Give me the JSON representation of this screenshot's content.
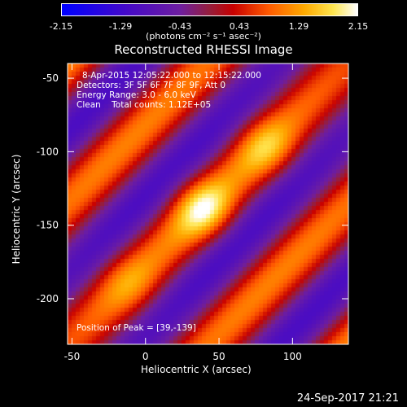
{
  "colorbar": {
    "ticks": [
      "-2.15",
      "-1.29",
      "-0.43",
      "0.43",
      "1.29",
      "2.15"
    ],
    "units_label": "(photons cm⁻² s⁻¹ asec⁻²)"
  },
  "chart_data": {
    "type": "heatmap",
    "title": "Reconstructed RHESSI Image",
    "xlabel": "Heliocentric X (arcsec)",
    "ylabel": "Heliocentric Y (arcsec)",
    "xlim": [
      -53,
      138
    ],
    "ylim": [
      -231,
      -40
    ],
    "x_ticks": [
      "-50",
      "0",
      "50",
      "100"
    ],
    "y_ticks": [
      "-50",
      "-100",
      "-150",
      "-200"
    ],
    "zlim": [
      -2.15,
      2.15
    ],
    "colormap": "hot-with-blue-negatives",
    "peak": [
      39,
      -139
    ],
    "sources": [
      {
        "x": 39,
        "y": -139,
        "value": 2.15
      },
      {
        "x": 82,
        "y": -97,
        "value": 1.75
      },
      {
        "x": -12,
        "y": -190,
        "value": 1.45
      }
    ],
    "annotations": {
      "time": "8-Apr-2015 12:05:22.000 to 12:15:22.000",
      "detectors": "Detectors: 3F 5F 6F 7F 8F 9F, Att 0",
      "energy": "Energy Range: 3.0 - 6.0 keV",
      "method": "Clean    Total counts: 1.12E+05",
      "peak_label": "Position of Peak = [39,-139]"
    }
  },
  "timestamp": "24-Sep-2017 21:21"
}
